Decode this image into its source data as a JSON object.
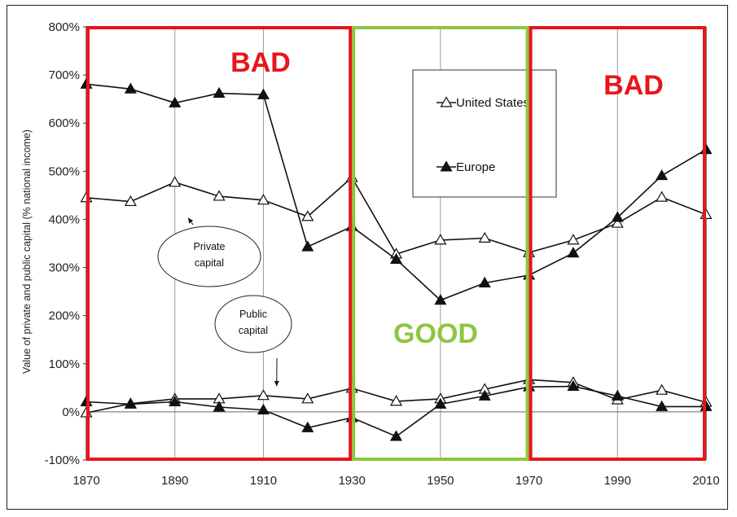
{
  "chart_data": {
    "type": "line",
    "ylabel": "Value of private and public capital (% national income)",
    "xlim": [
      1870,
      2010
    ],
    "ylim": [
      -100,
      800
    ],
    "x_ticks": [
      "1870",
      "1890",
      "1910",
      "1930",
      "1950",
      "1970",
      "1990",
      "2010"
    ],
    "y_ticks": [
      "-100%",
      "0%",
      "100%",
      "200%",
      "300%",
      "400%",
      "500%",
      "600%",
      "700%",
      "800%"
    ],
    "grid": "vertical only",
    "legend_position": "top-right",
    "series": [
      {
        "name": "United States",
        "group": "private",
        "marker": "open-triangle",
        "x": [
          1870,
          1880,
          1890,
          1900,
          1910,
          1920,
          1930,
          1940,
          1950,
          1960,
          1970,
          1980,
          1990,
          2000,
          2010
        ],
        "y": [
          445,
          437,
          477,
          448,
          440,
          406,
          487,
          328,
          357,
          361,
          331,
          357,
          392,
          446,
          410
        ]
      },
      {
        "name": "Europe",
        "group": "private",
        "marker": "filled-triangle",
        "x": [
          1870,
          1880,
          1890,
          1900,
          1910,
          1920,
          1930,
          1940,
          1950,
          1960,
          1970,
          1980,
          1990,
          2000,
          2010
        ],
        "y": [
          681,
          671,
          642,
          662,
          659,
          343,
          385,
          317,
          232,
          268,
          284,
          330,
          404,
          491,
          545
        ]
      },
      {
        "name": "United States",
        "group": "public",
        "marker": "open-triangle",
        "x": [
          1870,
          1880,
          1890,
          1900,
          1910,
          1920,
          1930,
          1940,
          1950,
          1960,
          1970,
          1980,
          1990,
          2000,
          2010
        ],
        "y": [
          -2,
          17,
          27,
          27,
          34,
          27,
          49,
          22,
          27,
          47,
          67,
          61,
          25,
          45,
          20
        ]
      },
      {
        "name": "Europe",
        "group": "public",
        "marker": "filled-triangle",
        "x": [
          1870,
          1880,
          1890,
          1900,
          1910,
          1920,
          1930,
          1940,
          1950,
          1960,
          1970,
          1980,
          1990,
          2000,
          2010
        ],
        "y": [
          21,
          16,
          21,
          10,
          4,
          -33,
          -12,
          -51,
          16,
          33,
          52,
          53,
          33,
          11,
          11
        ]
      }
    ],
    "legend": [
      {
        "label": "United States",
        "marker": "open-triangle"
      },
      {
        "label": "Europe",
        "marker": "filled-triangle"
      }
    ],
    "annotations": [
      {
        "text": "Private capital",
        "lines": [
          "Private",
          "capital"
        ],
        "points_to": {
          "x": 1893,
          "y": 410
        }
      },
      {
        "text": "Public capital",
        "lines": [
          "Public",
          "capital"
        ],
        "points_to": {
          "x": 1913,
          "y": 50
        }
      }
    ],
    "zones": [
      {
        "label": "BAD",
        "from": 1870,
        "to": 1930,
        "color": "#e8151b"
      },
      {
        "label": "GOOD",
        "from": 1930,
        "to": 1970,
        "color": "#8dc63f"
      },
      {
        "label": "BAD",
        "from": 1970,
        "to": 2010,
        "color": "#e8151b"
      }
    ],
    "colors": {
      "series_line": "#111111",
      "bad": "#e8151b",
      "good": "#8dc63f"
    }
  }
}
